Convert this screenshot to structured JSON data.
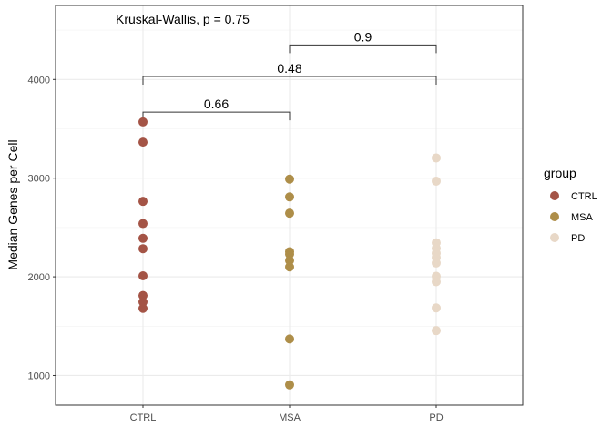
{
  "chart_data": {
    "type": "scatter",
    "title": "",
    "xlabel": "",
    "ylabel": "Median Genes per Cell",
    "categories": [
      "CTRL",
      "MSA",
      "PD"
    ],
    "ylim": [
      700,
      4750
    ],
    "yticks": [
      1000,
      2000,
      3000,
      4000
    ],
    "grid": true,
    "legend": {
      "title": "group",
      "position": "right"
    },
    "series": [
      {
        "name": "CTRL",
        "color": "#A45446",
        "values": [
          3570,
          3365,
          2765,
          2540,
          2390,
          2285,
          2010,
          1810,
          1745,
          1680
        ]
      },
      {
        "name": "MSA",
        "color": "#AE8E49",
        "values": [
          2990,
          2810,
          2645,
          2255,
          2230,
          2165,
          2100,
          1370,
          905
        ]
      },
      {
        "name": "PD",
        "color": "#E8D8C7",
        "values": [
          3205,
          2970,
          2345,
          2290,
          2240,
          2195,
          2140,
          2005,
          1950,
          1685,
          1455
        ]
      }
    ],
    "annotations": {
      "global_test": "Kruskal-Wallis, p = 0.75",
      "comparisons": [
        {
          "from": "CTRL",
          "to": "MSA",
          "label": "0.66",
          "y": 3670
        },
        {
          "from": "CTRL",
          "to": "PD",
          "label": "0.48",
          "y": 4030
        },
        {
          "from": "MSA",
          "to": "PD",
          "label": "0.9",
          "y": 4350
        }
      ]
    }
  }
}
